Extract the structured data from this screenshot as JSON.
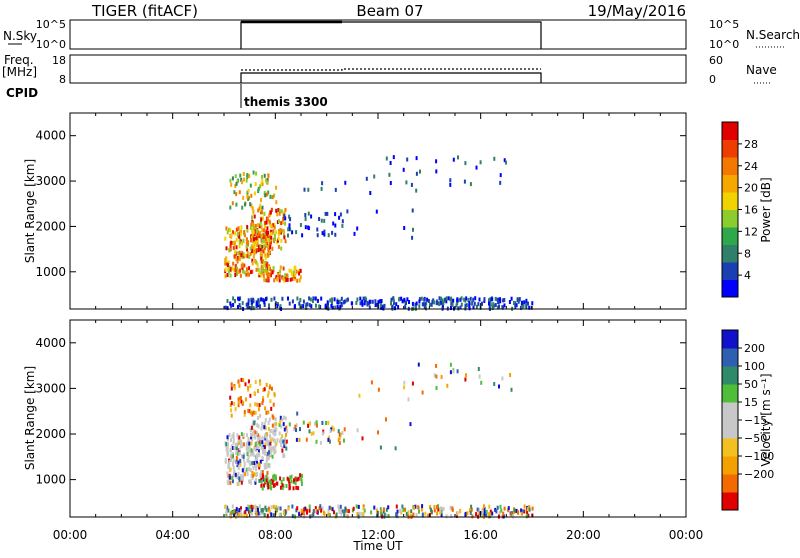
{
  "header": {
    "title": "TIGER (fitACF)",
    "beam": "Beam 07",
    "date": "19/May/2016"
  },
  "nsky_panel": {
    "left_label": "N.Sky",
    "left_ticks": [
      "10^5",
      "10^0"
    ],
    "right_label": "N.Search",
    "right_ticks": [
      "10^5",
      "10^0"
    ]
  },
  "freq_panel": {
    "left_label_line1": "Freq.",
    "left_label_line2": "[MHz]",
    "left_ticks": [
      "18",
      "8"
    ],
    "right_label": "Nave",
    "right_ticks": [
      "60",
      "0"
    ]
  },
  "cpid": {
    "label": "CPID",
    "program": "themis 3300"
  },
  "chart_data": [
    {
      "type": "heatmap",
      "name": "power",
      "xlabel": "",
      "ylabel": "Slant Range [km]",
      "xlim": [
        0,
        24
      ],
      "ylim": [
        180,
        4500
      ],
      "yticks": [
        "1000",
        "2000",
        "3000",
        "4000"
      ],
      "colorbar": {
        "label": "Power [dB]",
        "ticks": [
          "4",
          "8",
          "12",
          "16",
          "20",
          "24",
          "28"
        ],
        "colors": [
          "#0000ff",
          "#1a3fb3",
          "#2f7f6a",
          "#2ea84a",
          "#8ccc2e",
          "#f2d200",
          "#f7a800",
          "#f47800",
          "#ef3d00",
          "#e00000"
        ]
      }
    },
    {
      "type": "heatmap",
      "name": "velocity",
      "xlabel": "Time UT",
      "ylabel": "Slant Range [km]",
      "xlim": [
        0,
        24
      ],
      "ylim": [
        180,
        4500
      ],
      "xticks": [
        "00:00",
        "04:00",
        "08:00",
        "12:00",
        "16:00",
        "20:00",
        "00:00"
      ],
      "yticks": [
        "1000",
        "2000",
        "3000",
        "4000"
      ],
      "colorbar": {
        "label": "Velocity [m s⁻¹]",
        "ticks": [
          "200",
          "100",
          "50",
          "15",
          "−15",
          "−50",
          "−100",
          "−200"
        ],
        "colors": [
          "#1111cc",
          "#2f5fb0",
          "#2f8a6a",
          "#4fbf3a",
          "#c8c8c8",
          "#c8c8c8",
          "#f2c020",
          "#f4a000",
          "#f26a00",
          "#e00000"
        ]
      }
    }
  ]
}
